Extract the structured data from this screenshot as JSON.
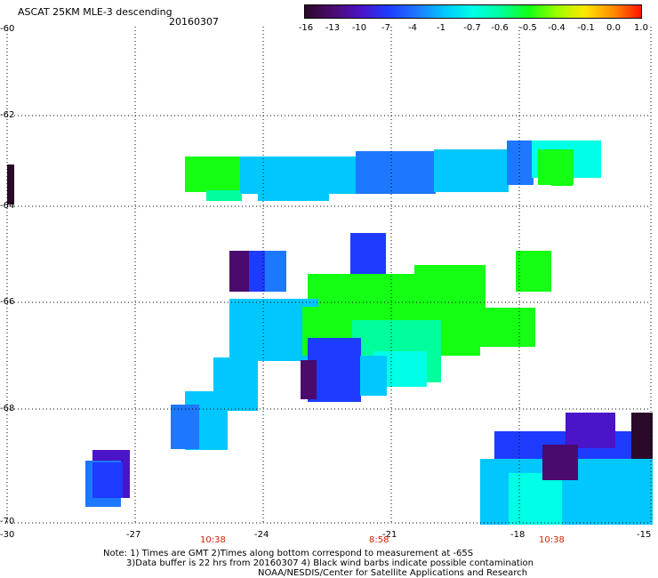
{
  "title": "ASCAT 25KM MLE-3 descending",
  "date": "20160307",
  "colorbar": {
    "labels": [
      "-16",
      "-13",
      "-10",
      "-7",
      "-4",
      "-1",
      "-0.7",
      "-0.6",
      "-0.5",
      "-0.4",
      "-0.1",
      "0.0",
      "1.0"
    ],
    "colors": [
      "#2a0a2a",
      "#4b0a6e",
      "#4a14c8",
      "#1e3cff",
      "#1e78ff",
      "#00c8ff",
      "#00ffe6",
      "#00ff9c",
      "#14ff14",
      "#9cff00",
      "#ffe600",
      "#ff8c00",
      "#ff1400"
    ]
  },
  "axes": {
    "x_labels": [
      "-30",
      "-27",
      "-24",
      "-21",
      "-18",
      "-15"
    ],
    "y_labels": [
      "-60",
      "-62",
      "-64",
      "-66",
      "-68",
      "-70"
    ]
  },
  "times": [
    "10:38",
    "8:58",
    "10:38"
  ],
  "notes": [
    "Note: 1) Times are GMT 2)Times along bottom correspond to measurement at -65S",
    "3)Data buffer is 22 hrs from 20160307 4) Black wind barbs indicate possible contamination",
    "NOAA/NESDIS/Center for Satellite Applications and Research"
  ]
}
